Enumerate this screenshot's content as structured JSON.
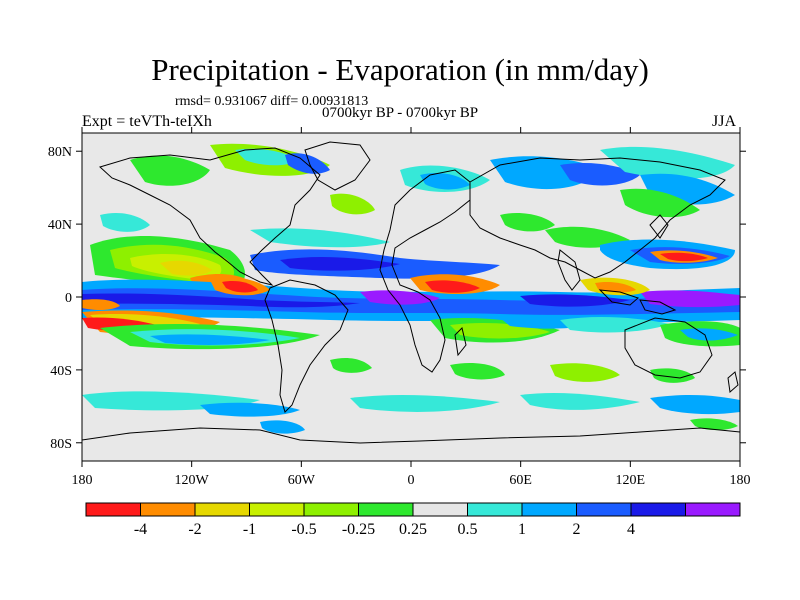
{
  "header": {
    "title": "Precipitation - Evaporation (in mm/day)",
    "stats": "rmsd= 0.931067 diff= 0.00931813",
    "subtitle": "0700kyr BP - 0700kyr BP",
    "experiment": "Expt = teVTh-teIXh",
    "season": "JJA"
  },
  "map": {
    "lon_range": [
      -180,
      180
    ],
    "lat_range": [
      -90,
      90
    ],
    "lat_ticks": [
      {
        "value": 80,
        "label": "80N"
      },
      {
        "value": 40,
        "label": "40N"
      },
      {
        "value": 0,
        "label": "0"
      },
      {
        "value": -40,
        "label": "40S"
      },
      {
        "value": -80,
        "label": "80S"
      }
    ],
    "lon_ticks": [
      {
        "value": -180,
        "label": "180"
      },
      {
        "value": -120,
        "label": "120W"
      },
      {
        "value": -60,
        "label": "60W"
      },
      {
        "value": 0,
        "label": "0"
      },
      {
        "value": 60,
        "label": "60E"
      },
      {
        "value": 120,
        "label": "120E"
      },
      {
        "value": 180,
        "label": "180"
      }
    ],
    "background_color": "#e8e8e8",
    "coastline_color": "#000000"
  },
  "colorbar": {
    "colors": [
      "#ff1a1a",
      "#ff8c00",
      "#e6d800",
      "#c8f000",
      "#8ef000",
      "#2ee82e",
      "#e6e6e6",
      "#36e8d8",
      "#00a8ff",
      "#1a5cff",
      "#1a1ae8",
      "#9a1aff"
    ],
    "labels": [
      "-4",
      "-2",
      "-1",
      "-0.5",
      "-0.25",
      "0.25",
      "0.5",
      "1",
      "2",
      "4"
    ]
  }
}
